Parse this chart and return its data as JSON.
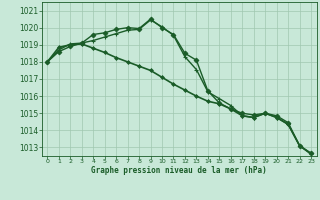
{
  "title": "Graphe pression niveau de la mer (hPa)",
  "background_color": "#c8e8d8",
  "grid_color": "#a0c8b0",
  "line_color": "#1a5c28",
  "xlim": [
    -0.5,
    23.5
  ],
  "ylim": [
    1012.5,
    1021.5
  ],
  "yticks": [
    1013,
    1014,
    1015,
    1016,
    1017,
    1018,
    1019,
    1020,
    1021
  ],
  "xticks": [
    0,
    1,
    2,
    3,
    4,
    5,
    6,
    7,
    8,
    9,
    10,
    11,
    12,
    13,
    14,
    15,
    16,
    17,
    18,
    19,
    20,
    21,
    22,
    23
  ],
  "series": [
    {
      "x": [
        0,
        1,
        2,
        3,
        4,
        5,
        6,
        7,
        8,
        9,
        10,
        11,
        12,
        13,
        14,
        15,
        16,
        17,
        18,
        19,
        20,
        21,
        22,
        23
      ],
      "y": [
        1018.0,
        1018.6,
        1018.9,
        1019.1,
        1019.6,
        1019.7,
        1019.9,
        1020.0,
        1019.95,
        1020.5,
        1020.0,
        1019.6,
        1018.5,
        1018.1,
        1016.3,
        1015.6,
        1015.25,
        1015.0,
        1014.9,
        1015.0,
        1014.85,
        1014.45,
        1013.1,
        1012.65
      ],
      "marker": "D",
      "markersize": 2.5,
      "linewidth": 1.0,
      "markeredgewidth": 0.6
    },
    {
      "x": [
        0,
        1,
        2,
        3,
        4,
        5,
        6,
        7,
        8,
        9,
        10,
        11,
        12,
        13,
        14,
        15,
        16,
        17,
        18,
        19,
        20,
        21,
        22,
        23
      ],
      "y": [
        1018.0,
        1018.7,
        1019.05,
        1019.1,
        1019.25,
        1019.45,
        1019.65,
        1019.85,
        1019.9,
        1020.45,
        1020.05,
        1019.55,
        1018.3,
        1017.55,
        1016.25,
        1015.85,
        1015.45,
        1014.85,
        1014.75,
        1015.0,
        1014.75,
        1014.35,
        1013.1,
        1012.6
      ],
      "marker": "+",
      "markersize": 3.5,
      "linewidth": 1.0,
      "markeredgewidth": 0.8
    },
    {
      "x": [
        0,
        1,
        2,
        3,
        4,
        5,
        6,
        7,
        8,
        9,
        10,
        11,
        12,
        13,
        14,
        15,
        16,
        17,
        18,
        19,
        20,
        21,
        22,
        23
      ],
      "y": [
        1018.0,
        1018.85,
        1019.0,
        1019.05,
        1018.8,
        1018.55,
        1018.25,
        1018.0,
        1017.75,
        1017.5,
        1017.1,
        1016.7,
        1016.35,
        1016.0,
        1015.7,
        1015.55,
        1015.25,
        1014.85,
        1014.75,
        1015.0,
        1014.75,
        1014.35,
        1013.1,
        1012.65
      ],
      "marker": "D",
      "markersize": 2.0,
      "linewidth": 1.2,
      "markeredgewidth": 0.5
    }
  ]
}
